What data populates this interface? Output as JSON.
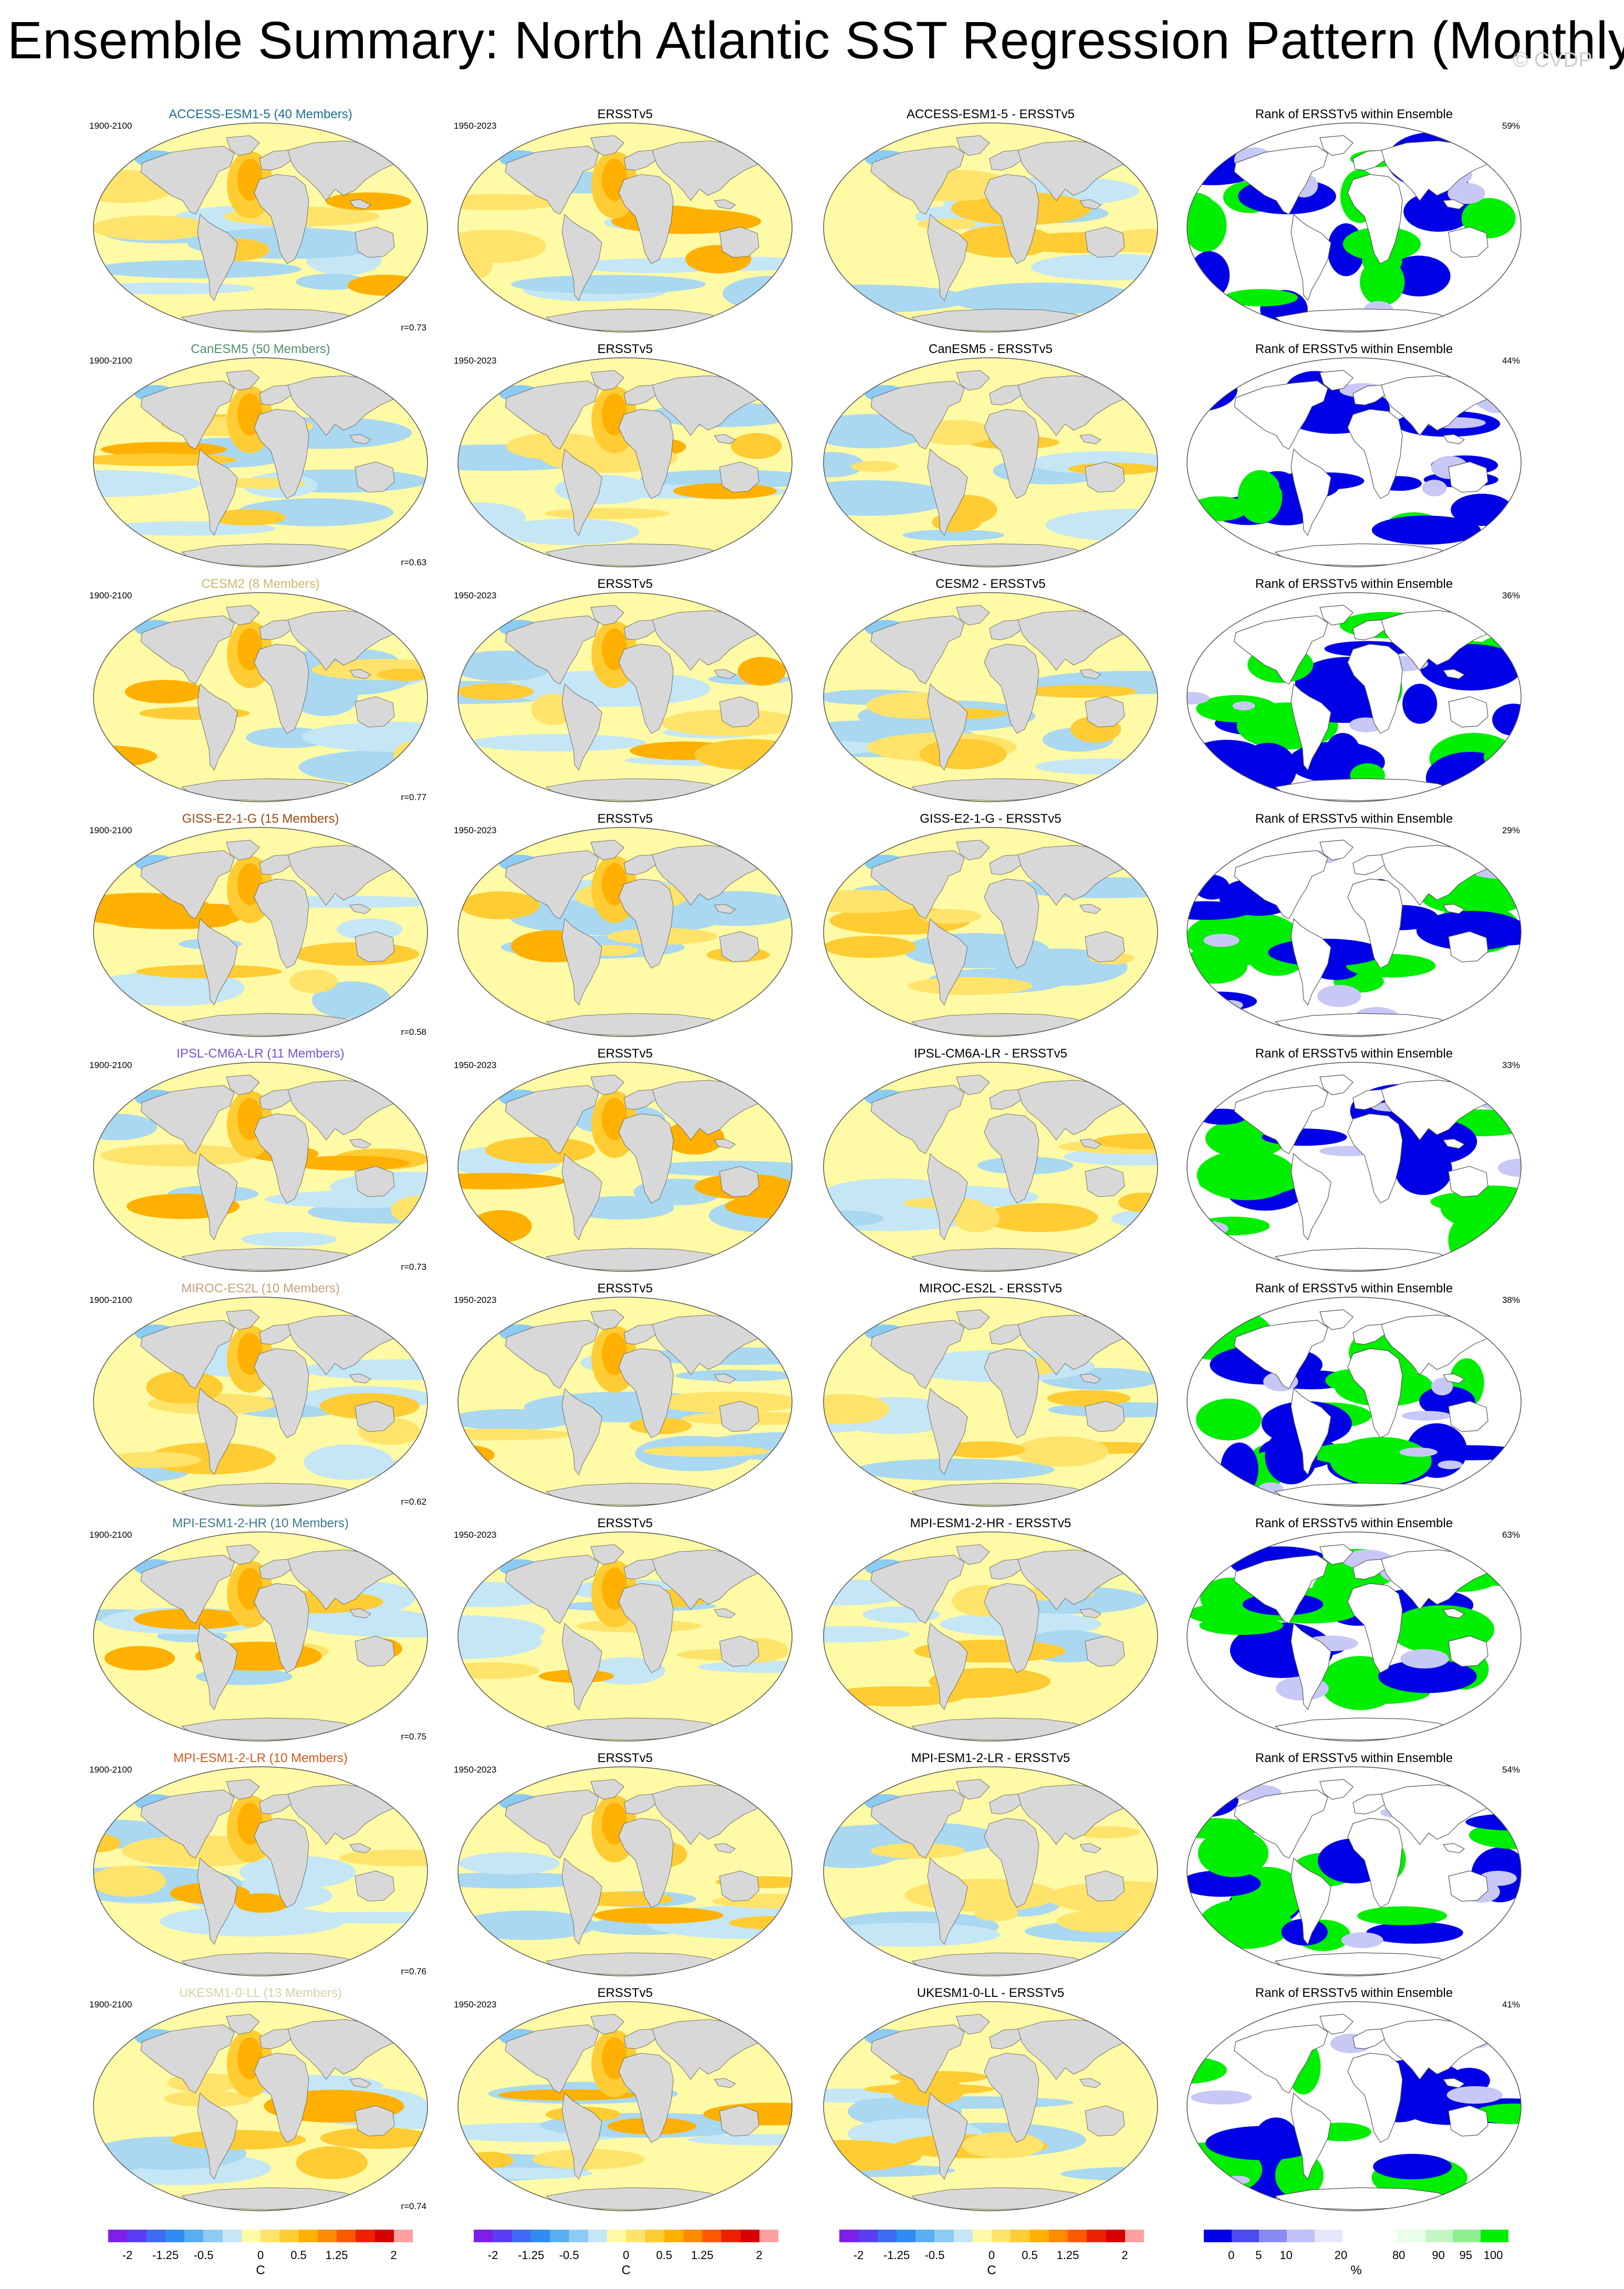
{
  "title": "Ensemble Summary: North Atlantic SST Regression Pattern (Monthly)",
  "watermark": "© CVDP",
  "colors": {
    "land": "#d8d8d8",
    "ocean_neutral": "#fffaa5",
    "rank_blue": "#0000e6",
    "rank_green": "#00ee00"
  },
  "columns": {
    "obs_title": "ERSSTv5",
    "obs_period": "1950-2023",
    "model_period": "1900-2100",
    "rank_title": "Rank of ERSSTv5 within Ensemble"
  },
  "rows": [
    {
      "model_title": "ACCESS-ESM1-5 (40 Members)",
      "model_color": "#1a6e8f",
      "diff_title": "ACCESS-ESM1-5 - ERSSTv5",
      "r": "r=0.73",
      "rank_pct": "59%"
    },
    {
      "model_title": "CanESM5 (50 Members)",
      "model_color": "#4f8f6e",
      "diff_title": "CanESM5 - ERSSTv5",
      "r": "r=0.63",
      "rank_pct": "44%"
    },
    {
      "model_title": "CESM2 (8 Members)",
      "model_color": "#c9b96a",
      "diff_title": "CESM2 - ERSSTv5",
      "r": "r=0.77",
      "rank_pct": "36%"
    },
    {
      "model_title": "GISS-E2-1-G (15 Members)",
      "model_color": "#9a4a10",
      "diff_title": "GISS-E2-1-G - ERSSTv5",
      "r": "r=0.58",
      "rank_pct": "29%"
    },
    {
      "model_title": "IPSL-CM6A-LR (11 Members)",
      "model_color": "#7a55c8",
      "diff_title": "IPSL-CM6A-LR - ERSSTv5",
      "r": "r=0.73",
      "rank_pct": "33%"
    },
    {
      "model_title": "MIROC-ES2L (10 Members)",
      "model_color": "#c9a07a",
      "diff_title": "MIROC-ES2L - ERSSTv5",
      "r": "r=0.62",
      "rank_pct": "38%"
    },
    {
      "model_title": "MPI-ESM1-2-HR (10 Members)",
      "model_color": "#3c7a8c",
      "diff_title": "MPI-ESM1-2-HR - ERSSTv5",
      "r": "r=0.75",
      "rank_pct": "63%"
    },
    {
      "model_title": "MPI-ESM1-2-LR (10 Members)",
      "model_color": "#d05a1e",
      "diff_title": "MPI-ESM1-2-LR - ERSSTv5",
      "r": "r=0.76",
      "rank_pct": "54%"
    },
    {
      "model_title": "UKESM1-0-LL (13 Members)",
      "model_color": "#d8d0a8",
      "diff_title": "UKESM1-0-LL - ERSSTv5",
      "r": "r=0.74",
      "rank_pct": "41%"
    }
  ],
  "colorbars": {
    "sst": {
      "colors": [
        "#7e1fe8",
        "#5a3df5",
        "#3f6cf5",
        "#2f8cf0",
        "#5aaef0",
        "#8ccbf2",
        "#c4e6f5",
        "#fffaa5",
        "#ffe36b",
        "#ffcc33",
        "#ffb000",
        "#ff8c00",
        "#ff5a00",
        "#ee2000",
        "#d60000",
        "#ffa0a0"
      ],
      "ticks": [
        "-2",
        "-1.25",
        "-0.5",
        "0",
        "0.5",
        "1.25",
        "2"
      ],
      "unit": "C"
    },
    "rank": {
      "colors": [
        "#0000e6",
        "#4b4bf0",
        "#8a8af5",
        "#c2c2f8",
        "#e6e6fb",
        "#ffffff",
        "#ffffff",
        "#e8ffe8",
        "#c4f5c4",
        "#8fef8f",
        "#00ee00"
      ],
      "ticks": [
        "0",
        "5",
        "10",
        "20",
        "80",
        "90",
        "95",
        "100"
      ],
      "unit": "%"
    }
  }
}
